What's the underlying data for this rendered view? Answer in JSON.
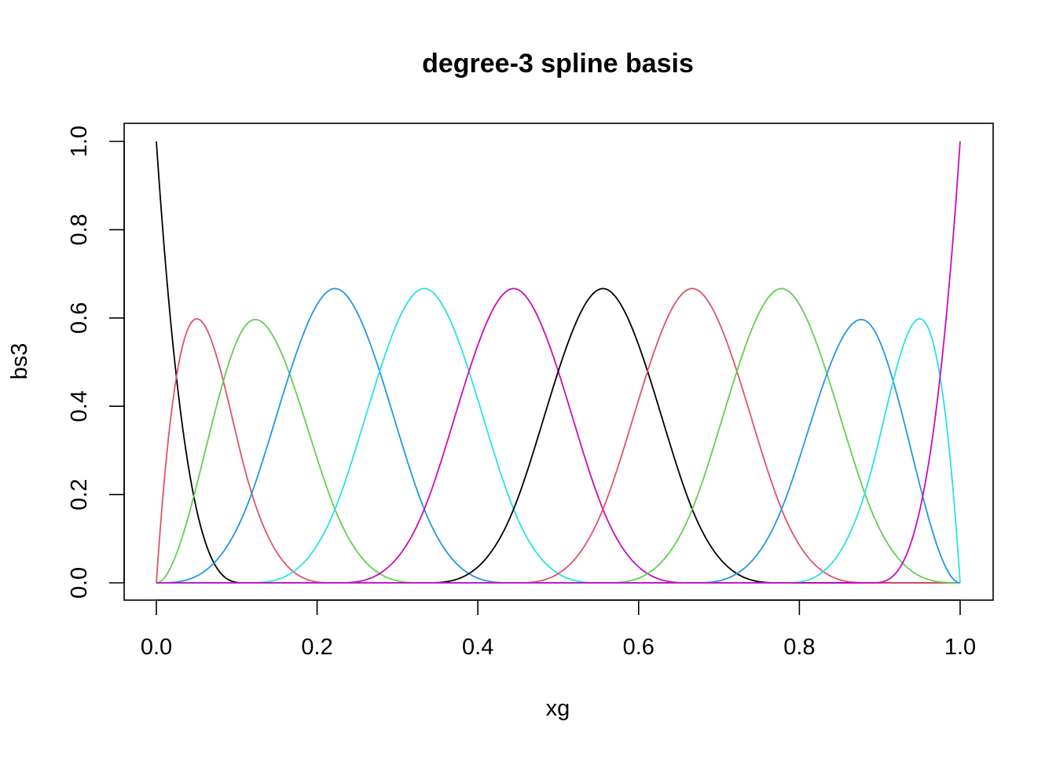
{
  "chart_data": {
    "type": "line",
    "title": "degree-3 spline basis",
    "xlabel": "xg",
    "ylabel": "bs3",
    "xlim": [
      0,
      1
    ],
    "ylim": [
      0,
      1
    ],
    "x_ticks": [
      "0.0",
      "0.2",
      "0.4",
      "0.6",
      "0.8",
      "1.0"
    ],
    "y_ticks": [
      "0.0",
      "0.2",
      "0.4",
      "0.6",
      "0.8",
      "1.0"
    ],
    "degree": 3,
    "knots": [
      0,
      0,
      0,
      0,
      0.1111,
      0.2222,
      0.3333,
      0.4444,
      0.5556,
      0.6667,
      0.7778,
      0.8889,
      1,
      1,
      1,
      1
    ],
    "legend": "none",
    "grid": false,
    "series_colors": [
      "#000000",
      "#DF536B",
      "#61D04F",
      "#2297E6",
      "#28E2E5",
      "#CD0BBC",
      "#000000",
      "#DF536B",
      "#61D04F",
      "#2297E6",
      "#28E2E5",
      "#CD0BBC"
    ],
    "series_count": 12,
    "peaks": [
      {
        "x": 0.0,
        "y": 1.0
      },
      {
        "x": 0.075,
        "y": 0.597
      },
      {
        "x": 0.185,
        "y": 0.597
      },
      {
        "x": 0.333,
        "y": 0.667
      },
      {
        "x": 0.5,
        "y": 0.667
      },
      {
        "x": 0.667,
        "y": 0.667
      },
      {
        "x": 0.815,
        "y": 0.597
      },
      {
        "x": 0.925,
        "y": 0.597
      },
      {
        "x": 1.0,
        "y": 1.0
      }
    ]
  }
}
